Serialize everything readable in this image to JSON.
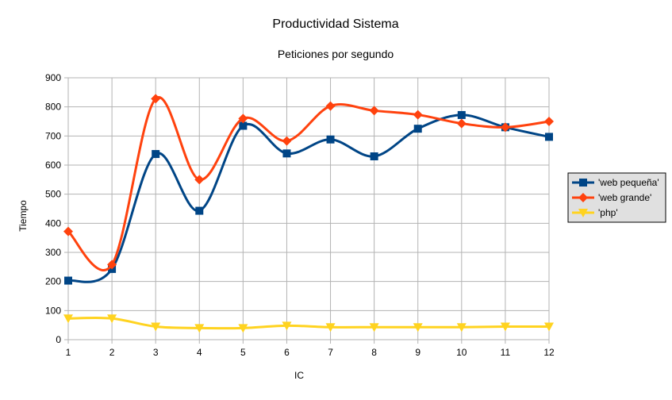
{
  "chart_data": {
    "type": "line",
    "title": "Productividad Sistema",
    "subtitle": "Peticiones por segundo",
    "xlabel": "IC",
    "ylabel": "Tiempo",
    "x": [
      1,
      2,
      3,
      4,
      5,
      6,
      7,
      8,
      9,
      10,
      11,
      12
    ],
    "ylim": [
      0,
      900
    ],
    "yticks": [
      0,
      100,
      200,
      300,
      400,
      500,
      600,
      700,
      800,
      900
    ],
    "grid": true,
    "smooth": true,
    "legend_position": "right",
    "series": [
      {
        "name": "'web pequeña'",
        "color": "#004586",
        "marker": "square",
        "values": [
          203,
          243,
          638,
          443,
          735,
          640,
          688,
          630,
          725,
          772,
          730,
          697
        ]
      },
      {
        "name": "'web grande'",
        "color": "#ff420e",
        "marker": "diamond",
        "values": [
          372,
          258,
          828,
          550,
          760,
          683,
          803,
          787,
          773,
          743,
          730,
          750
        ]
      },
      {
        "name": "'php'",
        "color": "#ffd320",
        "marker": "triangle-down",
        "values": [
          73,
          73,
          45,
          40,
          40,
          48,
          43,
          43,
          43,
          43,
          45,
          45
        ]
      }
    ]
  }
}
